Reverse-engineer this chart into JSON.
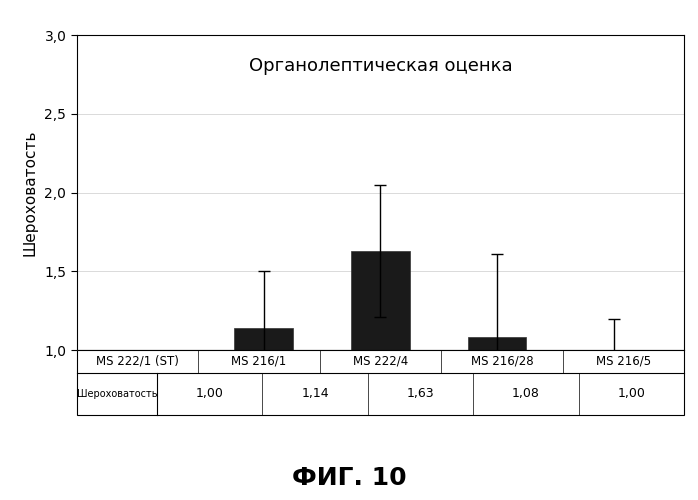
{
  "title": "Органолептическая оценка",
  "ylabel": "Шероховатость",
  "categories": [
    "MS 222/1 (ST)",
    "MS 216/1",
    "MS 222/4",
    "MS 216/28",
    "MS 216/5"
  ],
  "values": [
    1.0,
    1.14,
    1.63,
    1.08,
    1.0
  ],
  "errors": [
    0.0,
    0.36,
    0.42,
    0.53,
    0.2
  ],
  "table_row_label": "Шероховатость",
  "table_values": [
    "1,00",
    "1,14",
    "1,63",
    "1,08",
    "1,00"
  ],
  "ylim": [
    1.0,
    3.0
  ],
  "yticks": [
    1.0,
    1.5,
    2.0,
    2.5,
    3.0
  ],
  "bar_color": "#1a1a1a",
  "fig_label": "ФИГ. 10",
  "background_color": "#ffffff",
  "plot_background": "#ffffff",
  "grid_color": "#cccccc",
  "title_fontsize": 13,
  "ylabel_fontsize": 11,
  "ytick_fontsize": 10,
  "fig_label_fontsize": 18
}
